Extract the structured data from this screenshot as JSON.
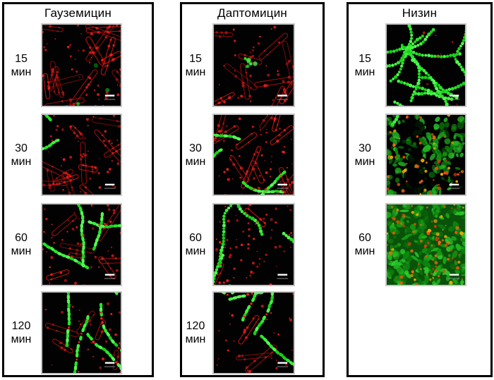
{
  "figure": {
    "panels": [
      {
        "title": "Гауземицин",
        "rows": [
          {
            "time_value": "15",
            "time_unit": "мин",
            "micrograph": {
              "red_rods": 15,
              "red_dots": 42,
              "green_spots": 3,
              "scale_bar": true
            }
          },
          {
            "time_value": "30",
            "time_unit": "мин",
            "micrograph": {
              "red_rods": 13,
              "red_dots": 55,
              "green_chains": 3,
              "chain_style": "solid",
              "scale_bar": true
            }
          },
          {
            "time_value": "60",
            "time_unit": "мин",
            "micrograph": {
              "red_rods": 7,
              "red_dots": 48,
              "green_chains": 4,
              "chain_style": "solid",
              "scale_bar": true
            }
          },
          {
            "time_value": "120",
            "time_unit": "мин",
            "micrograph": {
              "red_rods": 5,
              "red_dots": 26,
              "green_chains": 5,
              "chain_style": "solid",
              "chain_red_specks": true,
              "scale_bar": true
            }
          }
        ]
      },
      {
        "title": "Даптомицин",
        "rows": [
          {
            "time_value": "15",
            "time_unit": "мин",
            "micrograph": {
              "red_rods": 10,
              "red_dots": 38,
              "green_blob": true,
              "scale_bar": true
            }
          },
          {
            "time_value": "30",
            "time_unit": "мин",
            "micrograph": {
              "red_rods": 12,
              "red_dots": 50,
              "green_chains": 4,
              "chain_style": "solid",
              "scale_bar": true
            }
          },
          {
            "time_value": "60",
            "time_unit": "мин",
            "micrograph": {
              "red_rods": 2,
              "red_dots": 70,
              "green_chains": 6,
              "chain_style": "dotted",
              "scale_bar": true
            }
          },
          {
            "time_value": "120",
            "time_unit": "мин",
            "micrograph": {
              "red_rods": 3,
              "red_dots": 28,
              "green_chains": 6,
              "chain_style": "solid",
              "chain_red_specks": true,
              "scale_bar": true
            }
          }
        ]
      },
      {
        "title": "Низин",
        "rows": [
          {
            "time_value": "15",
            "time_unit": "мин",
            "micrograph": {
              "green_chains": 14,
              "chain_style": "dotted",
              "red_dots": 8,
              "scale_bar": true
            }
          },
          {
            "time_value": "30",
            "time_unit": "мин",
            "micrograph": {
              "green_field": 170,
              "black_patches": 6,
              "orange_specks": 55,
              "green_chains": 2,
              "chain_style": "dotted",
              "scale_bar": true
            }
          },
          {
            "time_value": "60",
            "time_unit": "мин",
            "micrograph": {
              "green_base": true,
              "green_field": 240,
              "orange_specks": 95,
              "scale_bar": true
            }
          }
        ]
      }
    ]
  },
  "colors": {
    "micrograph_bg": "#020202",
    "red": "#cf1212",
    "red_bright": "#ee1c1c",
    "greens": [
      "#0c860c",
      "#129e12",
      "#1fb81f",
      "#2ecf2e",
      "#0a700a"
    ],
    "greens_bright": [
      "#27e427",
      "#3cf03c",
      "#19cf19",
      "#55f555"
    ],
    "oranges": [
      "#f06a12",
      "#ff4e00",
      "#ffaa00",
      "#dd3c08"
    ],
    "green_dark": "#0b5a0b",
    "scale_bar": "#ffffff",
    "panel_border": "#000000"
  }
}
